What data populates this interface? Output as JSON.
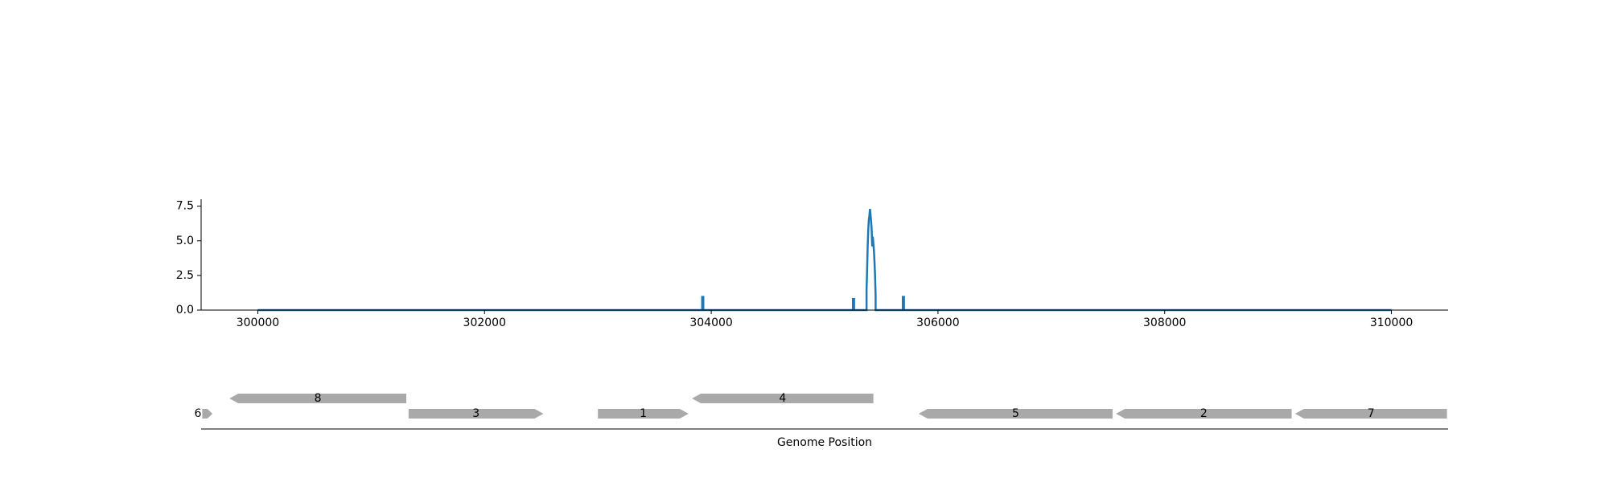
{
  "chart_data": [
    {
      "type": "line",
      "title": "",
      "xlabel": "",
      "ylabel": "",
      "xlim": [
        299500,
        310500
      ],
      "ylim": [
        0,
        8.0
      ],
      "x_ticks": [
        300000,
        302000,
        304000,
        306000,
        308000,
        310000
      ],
      "y_ticks": [
        0.0,
        2.5,
        5.0,
        7.5
      ],
      "y_tick_labels": [
        "0.0",
        "2.5",
        "5.0",
        "7.5"
      ],
      "grid": false,
      "line_color": "#1f77b4",
      "series": [
        {
          "x": [
            300000,
            303920,
            303920,
            303930,
            303930,
            305250,
            305250,
            305260,
            305260,
            305370,
            305370,
            305375,
            305380,
            305385,
            305390,
            305395,
            305400,
            305405,
            305410,
            305415,
            305420,
            305425,
            305430,
            305435,
            305440,
            305445,
            305450,
            305450,
            305460,
            305690,
            305690,
            305700,
            305700,
            310000
          ],
          "y": [
            0,
            0,
            0.95,
            0.95,
            0,
            0,
            0.8,
            0.8,
            0,
            0,
            1.4,
            3.0,
            4.6,
            5.8,
            6.5,
            6.8,
            7.3,
            6.9,
            6.4,
            5.8,
            4.6,
            5.3,
            4.8,
            4.3,
            3.5,
            2.5,
            1.0,
            0,
            0,
            0,
            0.95,
            0.95,
            0,
            0
          ]
        }
      ]
    },
    {
      "type": "gene_track",
      "xlabel": "Genome Position",
      "xlim": [
        299500,
        310500
      ],
      "gene_color": "#a9a9a9",
      "genes": [
        {
          "label": "6",
          "start": 299510,
          "end": 299600,
          "strand": "+",
          "row": 0
        },
        {
          "label": "8",
          "start": 299750,
          "end": 301310,
          "strand": "-",
          "row": 1
        },
        {
          "label": "3",
          "start": 301330,
          "end": 302520,
          "strand": "+",
          "row": 0
        },
        {
          "label": "1",
          "start": 303000,
          "end": 303800,
          "strand": "+",
          "row": 0
        },
        {
          "label": "4",
          "start": 303830,
          "end": 305430,
          "strand": "-",
          "row": 1
        },
        {
          "label": "5",
          "start": 305830,
          "end": 307540,
          "strand": "-",
          "row": 0
        },
        {
          "label": "2",
          "start": 307570,
          "end": 309120,
          "strand": "-",
          "row": 0
        },
        {
          "label": "7",
          "start": 309150,
          "end": 310490,
          "strand": "-",
          "row": 0
        }
      ]
    }
  ]
}
